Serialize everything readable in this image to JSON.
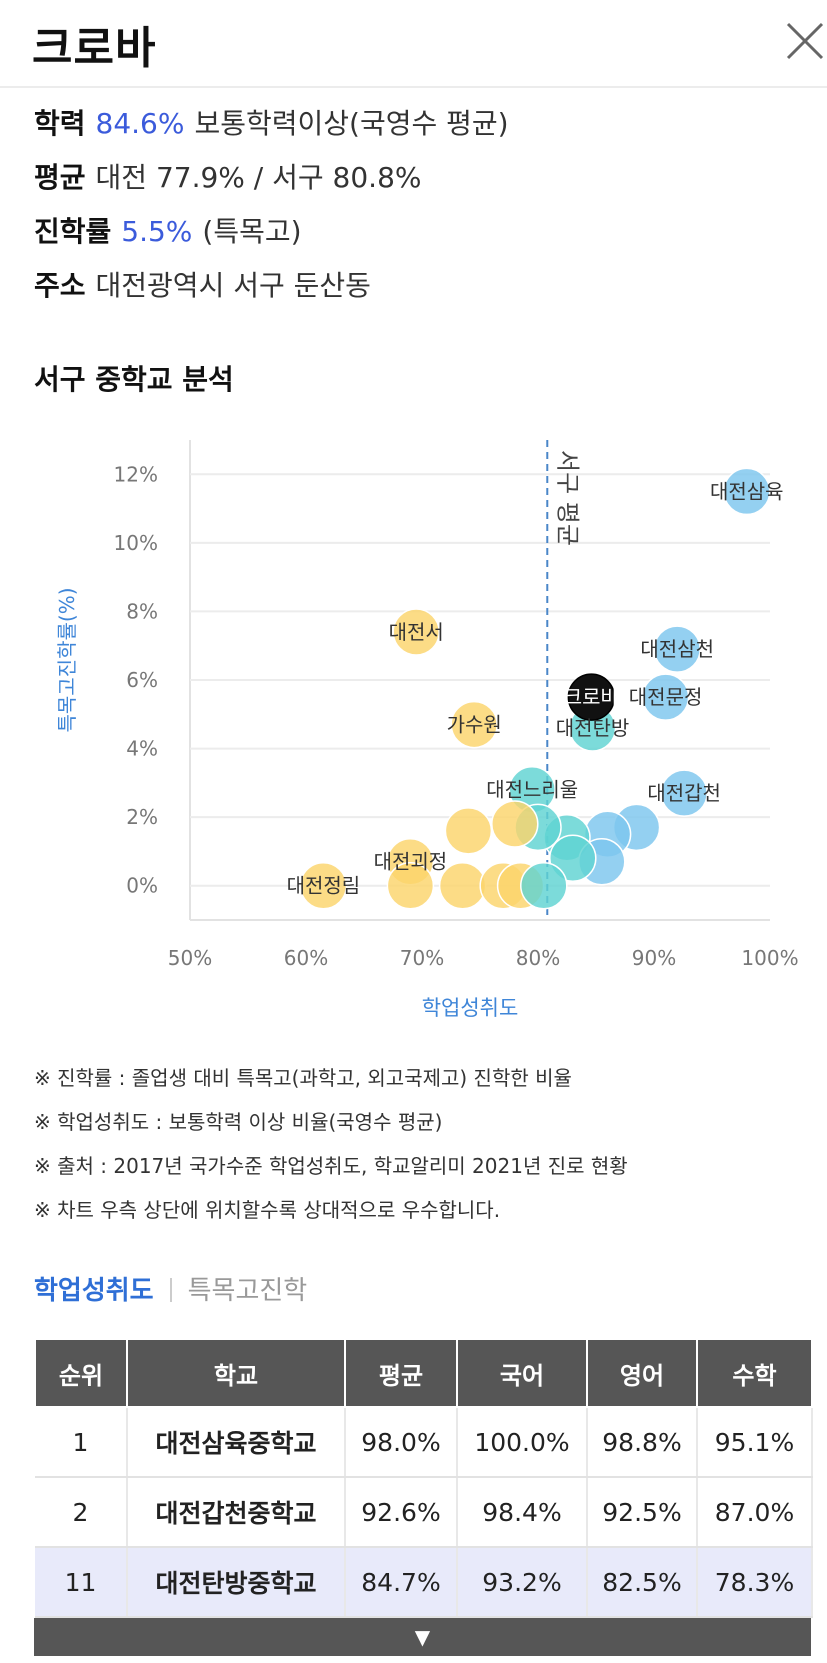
{
  "header": {
    "title": "크로바"
  },
  "info": {
    "achievement": {
      "label": "학력",
      "value": "84.6%",
      "desc": "보통학력이상(국영수 평균)"
    },
    "average": {
      "label": "평균",
      "value": "대전 77.9% / 서구 80.8%"
    },
    "advancement": {
      "label": "진학률",
      "value": "5.5%",
      "desc": "(특목고)"
    },
    "address": {
      "label": "주소",
      "value": "대전광역시 서구 둔산동"
    }
  },
  "section_title": "서구 중학교 분석",
  "chart_data": {
    "type": "scatter",
    "xlabel": "학업성취도",
    "ylabel": "특목고진학률(%)",
    "xlim": [
      50,
      100
    ],
    "ylim": [
      -1,
      13
    ],
    "xticks": [
      "50%",
      "60%",
      "70%",
      "80%",
      "90%",
      "100%"
    ],
    "yticks": [
      "0%",
      "2%",
      "4%",
      "6%",
      "8%",
      "10%",
      "12%"
    ],
    "x_tick_values": [
      50,
      60,
      70,
      80,
      90,
      100
    ],
    "y_tick_values": [
      0,
      2,
      4,
      6,
      8,
      10,
      12
    ],
    "reference_line": {
      "x": 80.8,
      "label": "서구 평균"
    },
    "grid": true,
    "colors": {
      "blue": "#7cc6ee",
      "teal": "#5fd3d2",
      "yellow": "#fbd46b",
      "selected": "#111111",
      "ref_line": "#4a86c8",
      "axis_label": "#3f86d8"
    },
    "points": [
      {
        "x": 98.0,
        "y": 11.5,
        "label": "대전삼육",
        "color": "blue"
      },
      {
        "x": 69.5,
        "y": 7.4,
        "label": "대전서",
        "color": "yellow"
      },
      {
        "x": 92.0,
        "y": 6.9,
        "label": "대전삼천",
        "color": "blue"
      },
      {
        "x": 91.0,
        "y": 5.5,
        "label": "대전문정",
        "color": "blue"
      },
      {
        "x": 84.6,
        "y": 5.5,
        "label": "크로바",
        "color": "selected"
      },
      {
        "x": 84.7,
        "y": 4.6,
        "label": "대전탄방",
        "color": "teal"
      },
      {
        "x": 74.5,
        "y": 4.7,
        "label": "가수원",
        "color": "yellow"
      },
      {
        "x": 92.6,
        "y": 2.7,
        "label": "대전갑천",
        "color": "blue"
      },
      {
        "x": 79.5,
        "y": 2.8,
        "label": "대전느리울",
        "color": "teal"
      },
      {
        "x": 88.5,
        "y": 1.7,
        "label": "",
        "color": "blue"
      },
      {
        "x": 86.0,
        "y": 1.5,
        "label": "",
        "color": "blue"
      },
      {
        "x": 82.5,
        "y": 1.4,
        "label": "",
        "color": "teal"
      },
      {
        "x": 80.0,
        "y": 1.7,
        "label": "",
        "color": "teal"
      },
      {
        "x": 78.0,
        "y": 1.8,
        "label": "",
        "color": "yellow"
      },
      {
        "x": 74.0,
        "y": 1.6,
        "label": "",
        "color": "yellow"
      },
      {
        "x": 85.5,
        "y": 0.7,
        "label": "",
        "color": "blue"
      },
      {
        "x": 83.0,
        "y": 0.8,
        "label": "",
        "color": "teal"
      },
      {
        "x": 69.0,
        "y": 0.7,
        "label": "대전괴정",
        "color": "yellow"
      },
      {
        "x": 61.5,
        "y": 0.0,
        "label": "대전정림",
        "color": "yellow"
      },
      {
        "x": 69.0,
        "y": 0.0,
        "label": "",
        "color": "yellow"
      },
      {
        "x": 73.5,
        "y": 0.0,
        "label": "",
        "color": "yellow"
      },
      {
        "x": 77.0,
        "y": 0.0,
        "label": "",
        "color": "yellow"
      },
      {
        "x": 78.5,
        "y": 0.0,
        "label": "",
        "color": "yellow"
      },
      {
        "x": 80.5,
        "y": 0.0,
        "label": "",
        "color": "teal"
      }
    ]
  },
  "notes": [
    "※ 진학률 : 졸업생 대비 특목고(과학고, 외고국제고) 진학한 비율",
    "※ 학업성취도 : 보통학력 이상 비율(국영수 평균)",
    "※ 출처 : 2017년 국가수준 학업성취도, 학교알리미 2021년 진로 현황",
    "※ 차트 우측 상단에 위치할수록 상대적으로 우수합니다."
  ],
  "tabs": [
    {
      "label": "학업성취도",
      "active": true
    },
    {
      "label": "특목고진학",
      "active": false
    }
  ],
  "table": {
    "headers": [
      "순위",
      "학교",
      "평균",
      "국어",
      "영어",
      "수학"
    ],
    "rows": [
      [
        "1",
        "대전삼육중학교",
        "98.0%",
        "100.0%",
        "98.8%",
        "95.1%"
      ],
      [
        "2",
        "대전갑천중학교",
        "92.6%",
        "98.4%",
        "92.5%",
        "87.0%"
      ],
      [
        "11",
        "대전탄방중학교",
        "84.7%",
        "93.2%",
        "82.5%",
        "78.3%"
      ]
    ],
    "highlight_row": 2
  },
  "more_button": {
    "label": "▼"
  }
}
